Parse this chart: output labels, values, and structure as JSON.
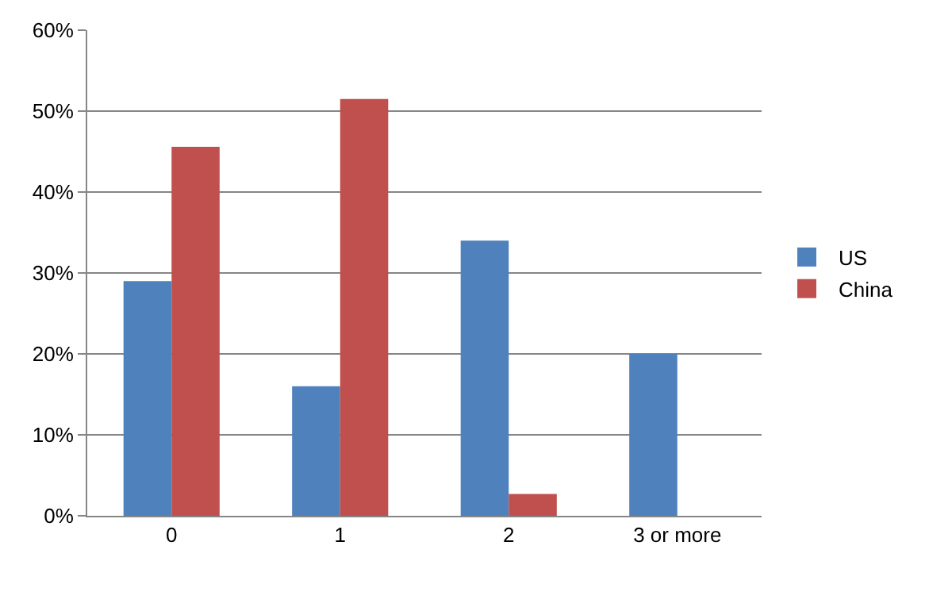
{
  "chart_data": {
    "type": "bar",
    "categories": [
      "0",
      "1",
      "2",
      "3 or more"
    ],
    "series": [
      {
        "name": "US",
        "color": "#4f81bd",
        "values": [
          29,
          16,
          34,
          20
        ]
      },
      {
        "name": "China",
        "color": "#c0504d",
        "values": [
          45.6,
          51.5,
          2.7,
          0
        ]
      }
    ],
    "ylim": [
      0,
      60
    ],
    "yticks": [
      {
        "value": 0,
        "label": "0%"
      },
      {
        "value": 10,
        "label": "10%"
      },
      {
        "value": 20,
        "label": "20%"
      },
      {
        "value": 30,
        "label": "30%"
      },
      {
        "value": 40,
        "label": "40%"
      },
      {
        "value": 50,
        "label": "50%"
      },
      {
        "value": 60,
        "label": "60%"
      }
    ],
    "grid": "y",
    "legend": "right"
  }
}
